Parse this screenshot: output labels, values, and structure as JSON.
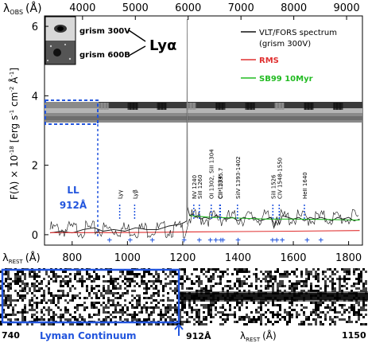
{
  "chart_data": {
    "type": "line",
    "top_axis": {
      "label": "λ",
      "label_sub": "OBS",
      "label_unit": "(Å)",
      "ticks": [
        4000,
        5000,
        6000,
        7000,
        8000,
        9000
      ],
      "range": [
        3280,
        9300
      ]
    },
    "bottom_axis": {
      "label": "λ",
      "label_sub": "REST",
      "label_unit": "(Å)",
      "ticks": [
        800,
        1000,
        1200,
        1400,
        1600,
        1800
      ],
      "range": [
        700,
        1850
      ]
    },
    "y_axis": {
      "label": "F(λ) × 10",
      "label_exp": "-18",
      "label_unit": "[erg s",
      "label_unit_exp1": "-1",
      "label_unit_mid": " cm",
      "label_unit_exp2": "-2",
      "label_unit_mid2": " Å",
      "label_unit_exp3": "-1",
      "label_unit_end": "]",
      "ticks": [
        0,
        2,
        4,
        6
      ],
      "range": [
        -0.3,
        6.3
      ]
    },
    "legend": {
      "position": "top-right",
      "entries": [
        {
          "line1": "VLT/FORS spectrum",
          "line2": "(grism 300V)",
          "color": "#111111"
        },
        {
          "line1": "RMS",
          "color": "#e03030"
        },
        {
          "line1": "SB99 10Myr",
          "color": "#22bb22"
        }
      ]
    },
    "thumbnails": [
      {
        "label": "grism 300V"
      },
      {
        "label": "grism 600B"
      }
    ],
    "lya_label": "Lyα",
    "ll_label": [
      "LL",
      "912Å"
    ],
    "line_labels": [
      {
        "text": "Lyγ",
        "rest": 972
      },
      {
        "text": "Lyβ",
        "rest": 1026
      },
      {
        "text": "NV 1240",
        "rest": 1240
      },
      {
        "text": "SiII 1260",
        "rest": 1260
      },
      {
        "text": "OI 1302, SiII 1304",
        "rest": 1303
      },
      {
        "text": "CII 1334",
        "rest": 1334
      },
      {
        "text": "CII* 1335.7",
        "rest": 1336
      },
      {
        "text": "SiIV 1393-1402",
        "rest": 1398
      },
      {
        "text": "SiII 1526",
        "rest": 1526
      },
      {
        "text": "CIV 1548-1550",
        "rest": 1549
      },
      {
        "text": "HeII 1640",
        "rest": 1640
      }
    ],
    "crosses_rest": [
      935,
      1010,
      1090,
      1205,
      1260,
      1300,
      1320,
      1338,
      1345,
      1400,
      1525,
      1540,
      1560,
      1650,
      1700
    ],
    "series": [
      {
        "name": "VLT/FORS spectrum",
        "color": "#111111",
        "x": [
          720,
          760,
          800,
          840,
          880,
          912,
          950,
          990,
          1030,
          1070,
          1110,
          1150,
          1190,
          1205,
          1215,
          1216,
          1217,
          1225,
          1235,
          1245,
          1255,
          1265,
          1280,
          1300,
          1320,
          1340,
          1360,
          1380,
          1400,
          1420,
          1440,
          1460,
          1480,
          1500,
          1520,
          1530,
          1540,
          1550,
          1560,
          1580,
          1600,
          1620,
          1640,
          1660,
          1680,
          1700,
          1720,
          1740,
          1760,
          1780,
          1800,
          1820,
          1840
        ],
        "y": [
          0.05,
          0.1,
          0.05,
          0.15,
          0.2,
          0.1,
          0.15,
          0.1,
          0.2,
          0.15,
          0.15,
          0.25,
          0.3,
          0.35,
          0.4,
          5.8,
          0.8,
          0.55,
          0.6,
          0.5,
          0.55,
          0.45,
          0.5,
          0.45,
          0.55,
          0.5,
          0.45,
          0.5,
          0.4,
          0.5,
          0.45,
          0.5,
          0.4,
          0.45,
          0.5,
          0.2,
          0.5,
          0.3,
          0.55,
          0.5,
          0.45,
          0.5,
          0.4,
          0.5,
          0.45,
          0.5,
          0.45,
          0.4,
          0.5,
          0.45,
          0.5,
          0.4,
          0.45
        ]
      },
      {
        "name": "RMS",
        "color": "#e03030",
        "x": [
          720,
          900,
          1100,
          1216,
          1400,
          1600,
          1840
        ],
        "y": [
          0.06,
          0.06,
          0.07,
          0.08,
          0.09,
          0.1,
          0.12
        ]
      },
      {
        "name": "SB99 10Myr",
        "color": "#22bb22",
        "x": [
          1225,
          1300,
          1400,
          1500,
          1600,
          1700,
          1840
        ],
        "y": [
          0.55,
          0.5,
          0.48,
          0.45,
          0.45,
          0.44,
          0.42
        ]
      }
    ]
  },
  "lower_panel": {
    "left_label": "740",
    "right_label": "1150",
    "center_label": "912Å",
    "axis_label": "λ",
    "axis_label_sub": "REST",
    "axis_label_unit": "(Å)",
    "box_label": "Lyman Continuum"
  },
  "colors": {
    "accent_blue": "#2255dd",
    "spectrum": "#111111",
    "rms": "#e03030",
    "model": "#22bb22"
  }
}
